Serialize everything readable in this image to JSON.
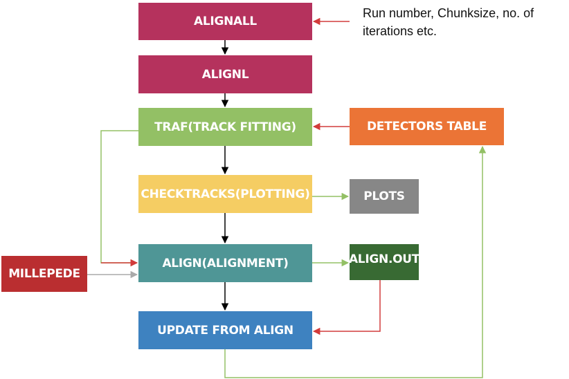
{
  "colors": {
    "alignall": "#B5325D",
    "alignl": "#B5325D",
    "traf": "#93C065",
    "detectors_table": "#EB7436",
    "checktracks": "#F5CD63",
    "plots": "#878787",
    "align": "#4F9696",
    "align_out": "#386A33",
    "millepede": "#BA2E30",
    "update": "#3E82C0",
    "arrow_black": "#000000",
    "arrow_red": "#D23B3B",
    "arrow_green": "#93C065",
    "arrow_gray": "#AAAAAA"
  },
  "nodes": {
    "alignall": "ALIGNALL",
    "alignl": "ALIGNL",
    "traf": "TRAF(TRACK FITTING)",
    "detectors_table": "DETECTORS TABLE",
    "checktracks": "CHECKTRACKS(PLOTTING)",
    "plots": "PLOTS",
    "align": "ALIGN(ALIGNMENT)",
    "align_out": "ALIGN.OUT",
    "millepede": "MILLEPEDE",
    "update": "UPDATE FROM ALIGN"
  },
  "note": "Run number, Chunksize, no. of iterations etc."
}
